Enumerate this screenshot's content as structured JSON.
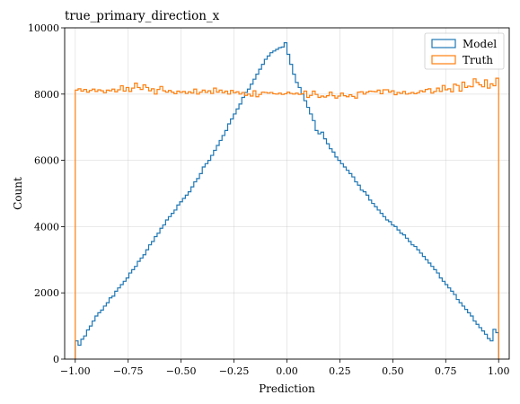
{
  "chart_data": {
    "type": "histogram",
    "title": "true_primary_direction_x",
    "xlabel": "Prediction",
    "ylabel": "Count",
    "xlim": [
      -1.05,
      1.05
    ],
    "ylim": [
      0,
      10000
    ],
    "xticks": [
      -1.0,
      -0.75,
      -0.5,
      -0.25,
      0.0,
      0.25,
      0.5,
      0.75,
      1.0
    ],
    "xtick_labels": [
      "−1.00",
      "−0.75",
      "−0.50",
      "−0.25",
      "0.00",
      "0.25",
      "0.50",
      "0.75",
      "1.00"
    ],
    "yticks": [
      0,
      2000,
      4000,
      6000,
      8000,
      10000
    ],
    "ytick_labels": [
      "0",
      "2000",
      "4000",
      "6000",
      "8000",
      "10000"
    ],
    "grid": true,
    "legend_position": "top-right",
    "bin_range": [
      -1.0,
      1.0
    ],
    "bins": 150,
    "series": [
      {
        "name": "Model",
        "color": "#1f77b4",
        "values": [
          550,
          420,
          600,
          700,
          880,
          1000,
          1150,
          1300,
          1400,
          1480,
          1600,
          1700,
          1850,
          1900,
          2050,
          2150,
          2250,
          2350,
          2450,
          2600,
          2700,
          2800,
          2950,
          3050,
          3150,
          3300,
          3450,
          3550,
          3700,
          3800,
          3950,
          4050,
          4200,
          4300,
          4400,
          4500,
          4650,
          4750,
          4850,
          4950,
          5050,
          5200,
          5350,
          5450,
          5600,
          5800,
          5900,
          6000,
          6150,
          6300,
          6450,
          6600,
          6750,
          6900,
          7100,
          7250,
          7400,
          7550,
          7700,
          7900,
          8050,
          8150,
          8300,
          8450,
          8600,
          8750,
          8900,
          9050,
          9150,
          9250,
          9300,
          9350,
          9400,
          9420,
          9550,
          9200,
          8900,
          8600,
          8350,
          8200,
          8000,
          7800,
          7600,
          7400,
          7200,
          6900,
          6800,
          6850,
          6650,
          6500,
          6350,
          6250,
          6100,
          6000,
          5900,
          5800,
          5700,
          5600,
          5500,
          5350,
          5250,
          5100,
          5050,
          4950,
          4800,
          4700,
          4600,
          4500,
          4400,
          4300,
          4200,
          4150,
          4050,
          4000,
          3900,
          3800,
          3750,
          3650,
          3550,
          3450,
          3400,
          3300,
          3200,
          3100,
          3000,
          2900,
          2800,
          2700,
          2600,
          2450,
          2350,
          2250,
          2150,
          2050,
          1950,
          1800,
          1700,
          1600,
          1500,
          1400,
          1300,
          1150,
          1050,
          950,
          850,
          750,
          620,
          550,
          900,
          800
        ]
      },
      {
        "name": "Truth",
        "color": "#ff7f0e",
        "values": [
          8120,
          8160,
          8090,
          8140,
          8060,
          8110,
          8150,
          8080,
          8130,
          8100,
          8040,
          8120,
          8100,
          8150,
          8070,
          8130,
          8250,
          8090,
          8200,
          8080,
          8180,
          8330,
          8200,
          8140,
          8280,
          8200,
          8100,
          8160,
          8000,
          8140,
          8230,
          8100,
          8060,
          8110,
          8060,
          8010,
          8090,
          8050,
          8080,
          8020,
          8070,
          8030,
          8150,
          8000,
          8060,
          8120,
          8050,
          8100,
          8020,
          8180,
          8060,
          8120,
          8040,
          8090,
          8000,
          8110,
          8040,
          8070,
          8000,
          8050,
          7960,
          8000,
          7940,
          8100,
          7920,
          7990,
          8060,
          8050,
          8030,
          8050,
          8010,
          8000,
          8030,
          7990,
          8010,
          8060,
          8020,
          8000,
          8030,
          7990,
          8010,
          8090,
          7900,
          7960,
          8090,
          7990,
          7900,
          7940,
          7910,
          7950,
          8060,
          7950,
          7880,
          7940,
          8030,
          7950,
          7920,
          7980,
          7930,
          7880,
          8060,
          8070,
          8000,
          8060,
          8090,
          8080,
          8070,
          8120,
          8010,
          8130,
          8130,
          8060,
          8100,
          7980,
          8050,
          8020,
          8080,
          8000,
          8020,
          8050,
          8010,
          8040,
          8100,
          8070,
          8140,
          8160,
          8030,
          8080,
          8180,
          8080,
          8260,
          8130,
          8160,
          8070,
          8300,
          8260,
          8090,
          8360,
          8200,
          8240,
          8220,
          8460,
          8350,
          8280,
          8220,
          8430,
          8180,
          8310,
          8250,
          8480
        ]
      }
    ]
  }
}
